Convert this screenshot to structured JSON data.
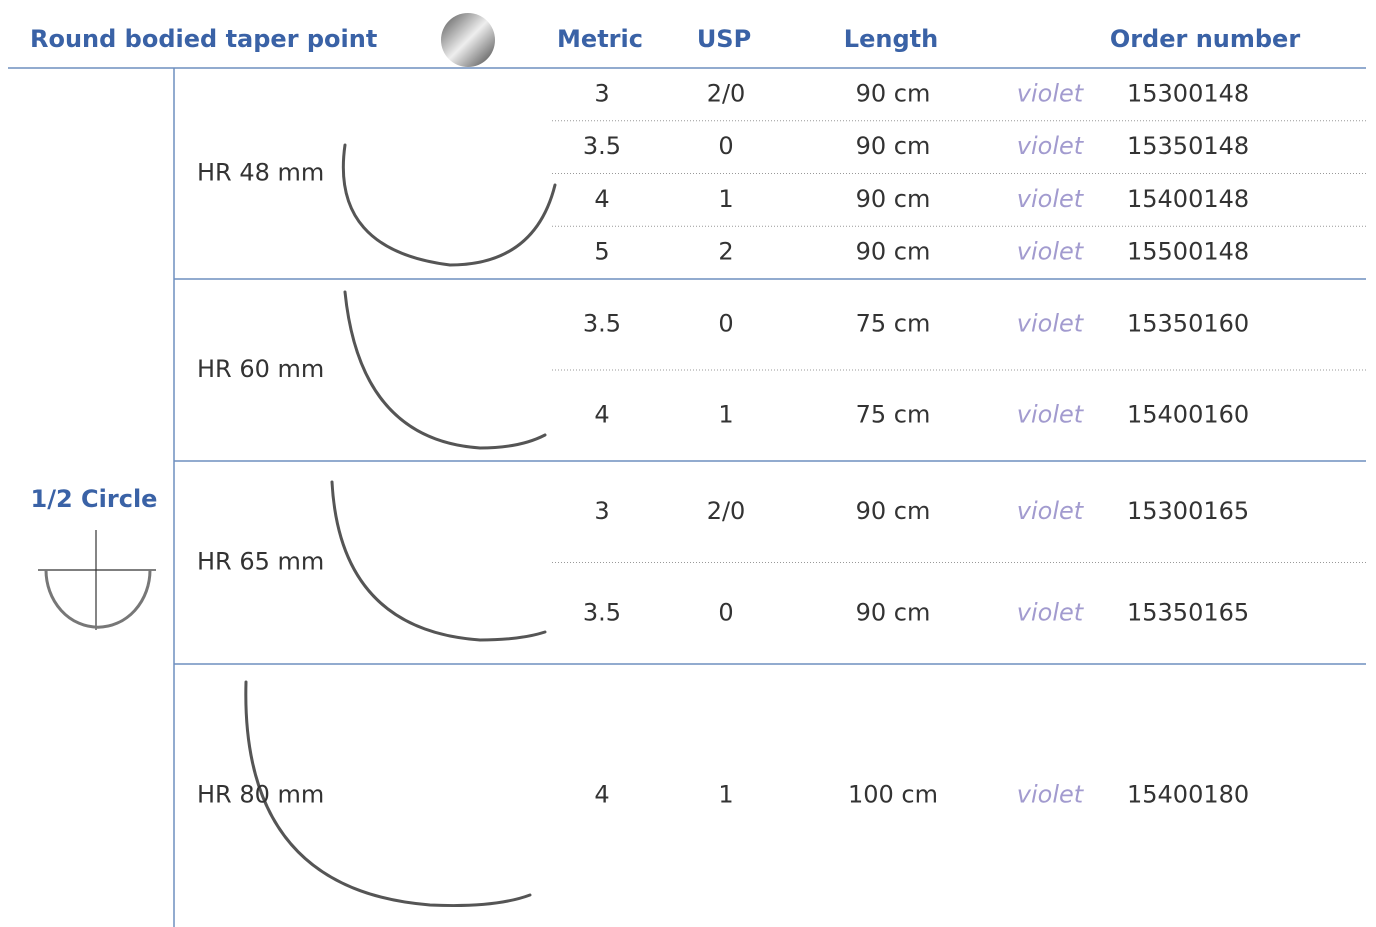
{
  "header": {
    "title": "Round bodied taper point",
    "columns": [
      "Metric",
      "USP",
      "Length",
      "Order number"
    ]
  },
  "shape": "1/2 Circle",
  "groups": [
    {
      "label": "HR 48 mm",
      "rows": [
        {
          "metric": "3",
          "usp": "2/0",
          "length": "90 cm",
          "color": "violet",
          "order": "15300148"
        },
        {
          "metric": "3.5",
          "usp": "0",
          "length": "90 cm",
          "color": "violet",
          "order": "15350148"
        },
        {
          "metric": "4",
          "usp": "1",
          "length": "90 cm",
          "color": "violet",
          "order": "15400148"
        },
        {
          "metric": "5",
          "usp": "2",
          "length": "90 cm",
          "color": "violet",
          "order": "15500148"
        }
      ]
    },
    {
      "label": "HR 60 mm",
      "rows": [
        {
          "metric": "3.5",
          "usp": "0",
          "length": "75 cm",
          "color": "violet",
          "order": "15350160"
        },
        {
          "metric": "4",
          "usp": "1",
          "length": "75 cm",
          "color": "violet",
          "order": "15400160"
        }
      ]
    },
    {
      "label": "HR 65 mm",
      "rows": [
        {
          "metric": "3",
          "usp": "2/0",
          "length": "90 cm",
          "color": "violet",
          "order": "15300165"
        },
        {
          "metric": "3.5",
          "usp": "0",
          "length": "90 cm",
          "color": "violet",
          "order": "15350165"
        }
      ]
    },
    {
      "label": "HR 80 mm",
      "rows": [
        {
          "metric": "4",
          "usp": "1",
          "length": "100 cm",
          "color": "violet",
          "order": "15400180"
        }
      ]
    }
  ]
}
